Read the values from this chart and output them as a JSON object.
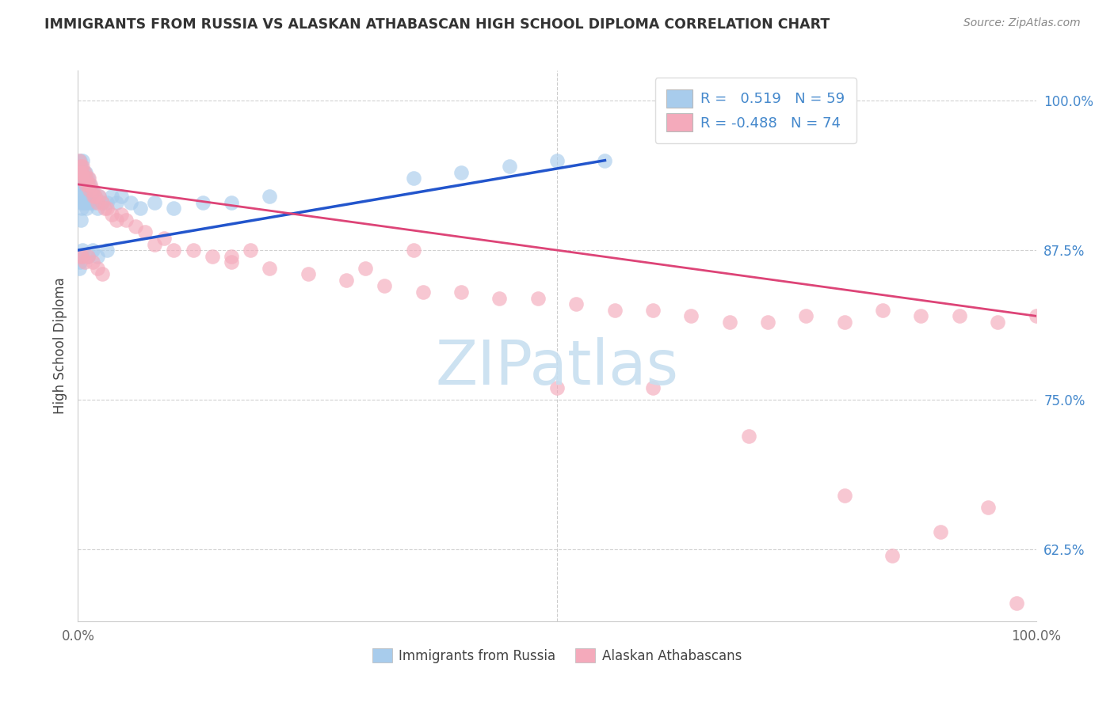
{
  "title": "IMMIGRANTS FROM RUSSIA VS ALASKAN ATHABASCAN HIGH SCHOOL DIPLOMA CORRELATION CHART",
  "source": "Source: ZipAtlas.com",
  "ylabel": "High School Diploma",
  "ytick_labels": [
    "62.5%",
    "75.0%",
    "87.5%",
    "100.0%"
  ],
  "ytick_values": [
    0.625,
    0.75,
    0.875,
    1.0
  ],
  "blue_R": 0.519,
  "blue_N": 59,
  "pink_R": -0.488,
  "pink_N": 74,
  "blue_color": "#A8CCEC",
  "pink_color": "#F4AABB",
  "blue_line_color": "#2255CC",
  "pink_line_color": "#DD4477",
  "ytick_color": "#4488CC",
  "background_color": "#FFFFFF",
  "title_color": "#333333",
  "grid_color": "#CCCCCC",
  "blue_scatter_x": [
    0.001,
    0.001,
    0.002,
    0.002,
    0.002,
    0.003,
    0.003,
    0.003,
    0.003,
    0.004,
    0.004,
    0.004,
    0.005,
    0.005,
    0.005,
    0.006,
    0.006,
    0.007,
    0.007,
    0.008,
    0.008,
    0.009,
    0.009,
    0.01,
    0.01,
    0.011,
    0.012,
    0.013,
    0.014,
    0.015,
    0.016,
    0.018,
    0.02,
    0.022,
    0.025,
    0.03,
    0.035,
    0.04,
    0.045,
    0.055,
    0.065,
    0.08,
    0.1,
    0.13,
    0.16,
    0.2,
    0.03,
    0.02,
    0.015,
    0.01,
    0.005,
    0.003,
    0.002,
    0.001,
    0.35,
    0.4,
    0.45,
    0.5,
    0.55
  ],
  "blue_scatter_y": [
    0.945,
    0.93,
    0.95,
    0.92,
    0.935,
    0.945,
    0.93,
    0.915,
    0.9,
    0.94,
    0.925,
    0.91,
    0.95,
    0.935,
    0.915,
    0.94,
    0.92,
    0.935,
    0.915,
    0.94,
    0.92,
    0.93,
    0.91,
    0.935,
    0.915,
    0.92,
    0.93,
    0.915,
    0.925,
    0.92,
    0.915,
    0.92,
    0.91,
    0.92,
    0.915,
    0.915,
    0.92,
    0.915,
    0.92,
    0.915,
    0.91,
    0.915,
    0.91,
    0.915,
    0.915,
    0.92,
    0.875,
    0.87,
    0.875,
    0.87,
    0.875,
    0.87,
    0.865,
    0.86,
    0.935,
    0.94,
    0.945,
    0.95,
    0.95
  ],
  "pink_scatter_x": [
    0.001,
    0.002,
    0.003,
    0.003,
    0.004,
    0.005,
    0.006,
    0.007,
    0.008,
    0.009,
    0.01,
    0.011,
    0.012,
    0.013,
    0.015,
    0.016,
    0.018,
    0.02,
    0.022,
    0.025,
    0.028,
    0.03,
    0.035,
    0.04,
    0.045,
    0.05,
    0.06,
    0.07,
    0.08,
    0.09,
    0.1,
    0.12,
    0.14,
    0.16,
    0.2,
    0.24,
    0.28,
    0.32,
    0.36,
    0.4,
    0.44,
    0.48,
    0.52,
    0.56,
    0.6,
    0.64,
    0.68,
    0.72,
    0.76,
    0.8,
    0.84,
    0.88,
    0.92,
    0.96,
    1.0,
    0.003,
    0.005,
    0.007,
    0.01,
    0.015,
    0.02,
    0.025,
    0.16,
    0.3,
    0.18,
    0.35,
    0.5,
    0.6,
    0.7,
    0.8,
    0.85,
    0.9,
    0.95,
    0.98
  ],
  "pink_scatter_y": [
    0.95,
    0.94,
    0.945,
    0.935,
    0.94,
    0.945,
    0.935,
    0.94,
    0.93,
    0.935,
    0.93,
    0.935,
    0.925,
    0.93,
    0.925,
    0.92,
    0.92,
    0.915,
    0.92,
    0.915,
    0.91,
    0.91,
    0.905,
    0.9,
    0.905,
    0.9,
    0.895,
    0.89,
    0.88,
    0.885,
    0.875,
    0.875,
    0.87,
    0.865,
    0.86,
    0.855,
    0.85,
    0.845,
    0.84,
    0.84,
    0.835,
    0.835,
    0.83,
    0.825,
    0.825,
    0.82,
    0.815,
    0.815,
    0.82,
    0.815,
    0.825,
    0.82,
    0.82,
    0.815,
    0.82,
    0.87,
    0.87,
    0.865,
    0.87,
    0.865,
    0.86,
    0.855,
    0.87,
    0.86,
    0.875,
    0.875,
    0.76,
    0.76,
    0.72,
    0.67,
    0.62,
    0.64,
    0.66,
    0.58
  ]
}
